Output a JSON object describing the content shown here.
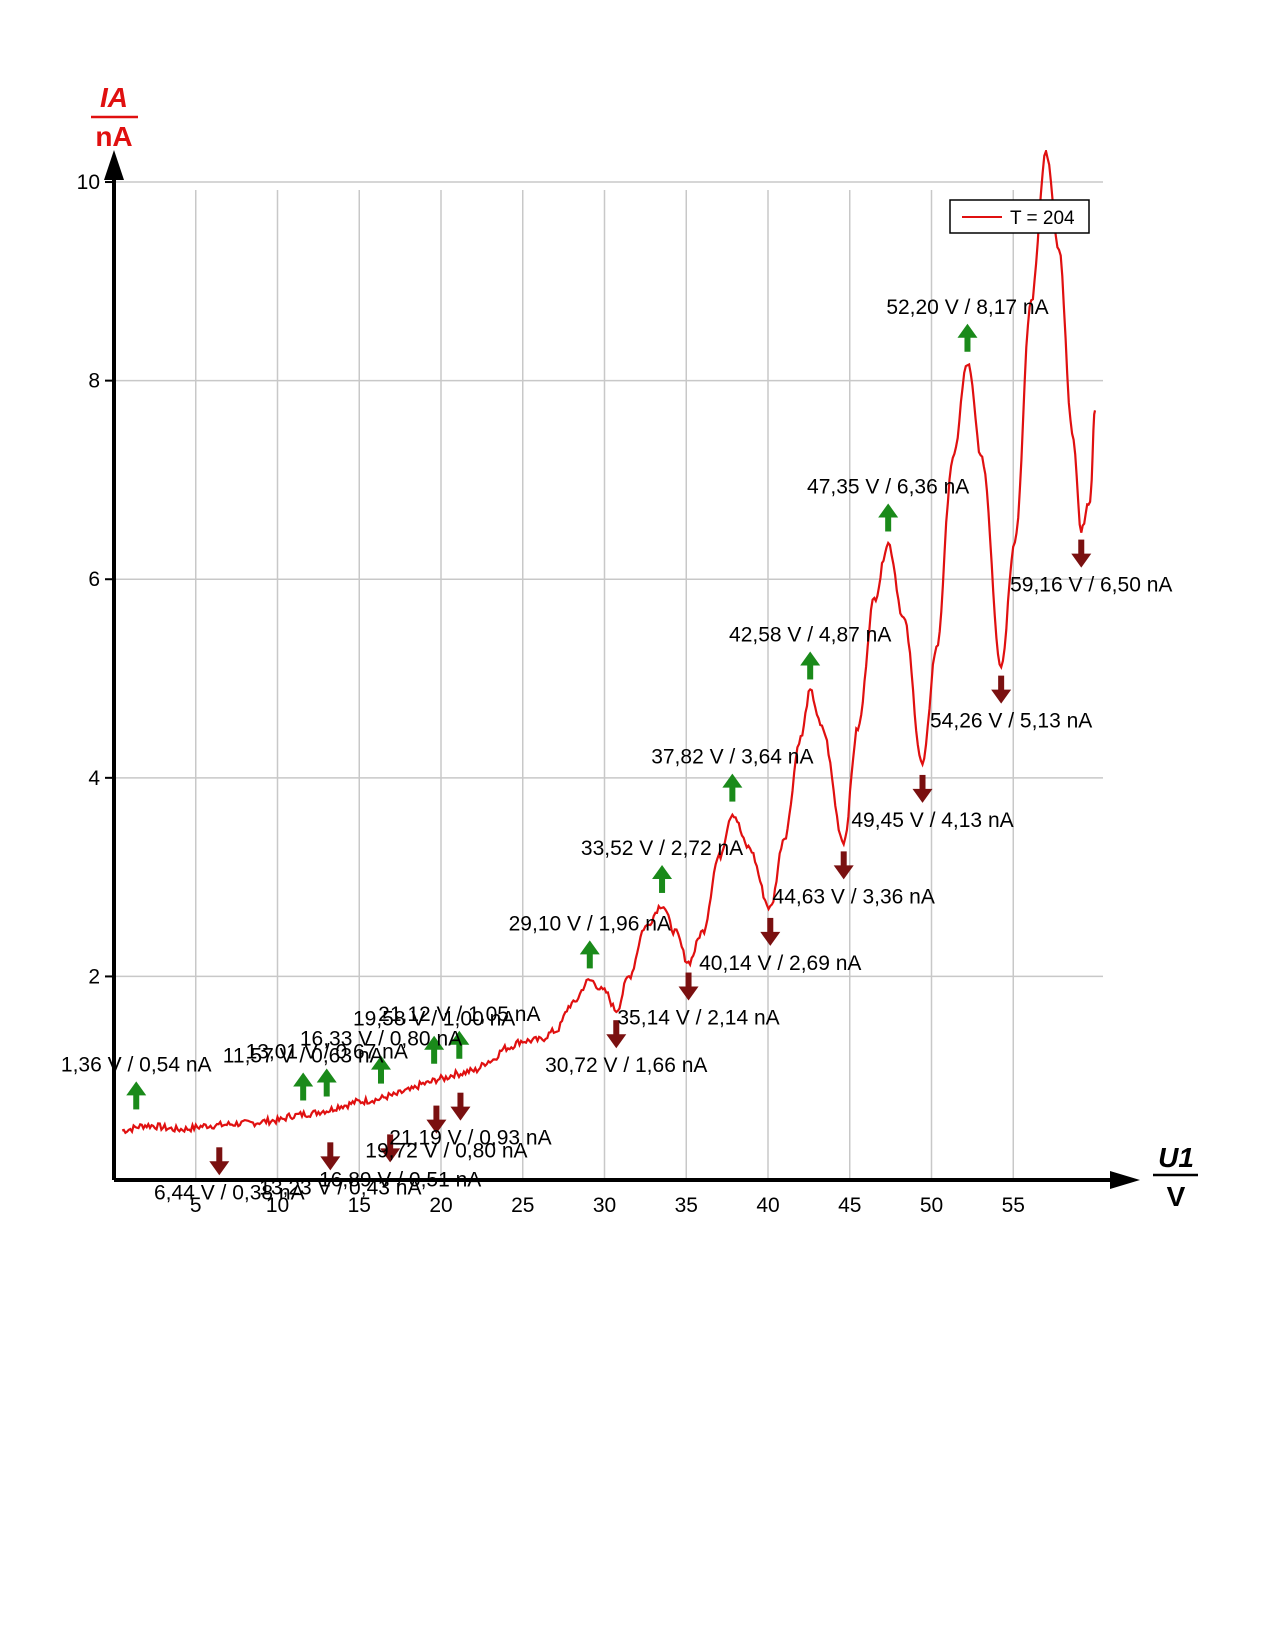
{
  "chart_data": {
    "type": "line",
    "title": "",
    "y_axis": {
      "symbol": "IA",
      "unit": "nA",
      "ticks": [
        "2",
        "4",
        "6",
        "8",
        "10"
      ],
      "range": [
        0,
        10
      ]
    },
    "x_axis": {
      "symbol": "U1",
      "unit": "V",
      "ticks": [
        "5",
        "10",
        "15",
        "20",
        "25",
        "30",
        "35",
        "40",
        "45",
        "50",
        "55"
      ],
      "range": [
        0,
        60
      ]
    },
    "grid": true,
    "legend": {
      "position": "top-right",
      "label": "T = 204"
    },
    "colors": {
      "curve": "#e01010",
      "max_arrow": "#1a8a1a",
      "min_arrow": "#7a1010",
      "grid": "#c8c8c8",
      "axis": "#000000"
    },
    "series": [
      {
        "name": "T = 204",
        "x": [
          0.5,
          2,
          4,
          6,
          8,
          10,
          11,
          12,
          13,
          14,
          15,
          16,
          17,
          18,
          19,
          20,
          21,
          22,
          23,
          24,
          25,
          26,
          27,
          28,
          29.1,
          30,
          30.72,
          31.5,
          32.5,
          33.52,
          34.3,
          35.14,
          36,
          37,
          37.82,
          38.8,
          40.14,
          41,
          42,
          42.58,
          43.3,
          44.63,
          45.5,
          46.5,
          47.35,
          48.3,
          49.45,
          50.3,
          51.3,
          52.2,
          53.1,
          54.26,
          55.1,
          56.1,
          57.0,
          57.8,
          58.6,
          59.16,
          59.7,
          60
        ],
        "values": [
          0.45,
          0.5,
          0.46,
          0.5,
          0.52,
          0.55,
          0.6,
          0.62,
          0.65,
          0.7,
          0.74,
          0.76,
          0.8,
          0.85,
          0.92,
          0.97,
          1.02,
          1.05,
          1.15,
          1.28,
          1.35,
          1.36,
          1.45,
          1.72,
          1.96,
          1.85,
          1.66,
          2.0,
          2.5,
          2.72,
          2.45,
          2.14,
          2.45,
          3.2,
          3.64,
          3.3,
          2.69,
          3.4,
          4.4,
          4.87,
          4.5,
          3.36,
          4.5,
          5.8,
          6.36,
          5.6,
          4.13,
          5.3,
          7.2,
          8.17,
          7.2,
          5.13,
          6.4,
          8.8,
          10.3,
          9.3,
          7.5,
          6.5,
          6.8,
          7.7
        ]
      }
    ],
    "maxima": [
      {
        "x": 1.36,
        "y": 0.54,
        "label": "1,36 V / 0,54 nA"
      },
      {
        "x": 11.57,
        "y": 0.63,
        "label": "11,57 V / 0,63 nA"
      },
      {
        "x": 13.01,
        "y": 0.67,
        "label": "13,01 V / 0,67 nA"
      },
      {
        "x": 16.33,
        "y": 0.8,
        "label": "16,33 V / 0,80 nA"
      },
      {
        "x": 19.58,
        "y": 1.0,
        "label": "19,58 V / 1,00 nA"
      },
      {
        "x": 21.12,
        "y": 1.05,
        "label": "21,12 V / 1,05 nA"
      },
      {
        "x": 29.1,
        "y": 1.96,
        "label": "29,10 V / 1,96 nA"
      },
      {
        "x": 33.52,
        "y": 2.72,
        "label": "33,52 V / 2,72 nA"
      },
      {
        "x": 37.82,
        "y": 3.64,
        "label": "37,82 V / 3,64 nA"
      },
      {
        "x": 42.58,
        "y": 4.87,
        "label": "42,58 V / 4,87 nA"
      },
      {
        "x": 47.35,
        "y": 6.36,
        "label": "47,35 V / 6,36 nA"
      },
      {
        "x": 52.2,
        "y": 8.17,
        "label": "52,20 V / 8,17 nA"
      }
    ],
    "minima": [
      {
        "x": 6.44,
        "y": 0.38,
        "label": "6,44 V / 0,38 nA"
      },
      {
        "x": 13.23,
        "y": 0.43,
        "label": "13,23 V / 0,43 nA"
      },
      {
        "x": 16.89,
        "y": 0.51,
        "label": "16,89 V / 0,51 nA"
      },
      {
        "x": 19.72,
        "y": 0.8,
        "label": "19,72 V / 0,80 nA"
      },
      {
        "x": 21.19,
        "y": 0.93,
        "label": "21,19 V / 0,93 nA"
      },
      {
        "x": 30.72,
        "y": 1.66,
        "label": "30,72 V / 1,66 nA"
      },
      {
        "x": 35.14,
        "y": 2.14,
        "label": "35,14 V / 2,14 nA"
      },
      {
        "x": 40.14,
        "y": 2.69,
        "label": "40,14 V / 2,69 nA"
      },
      {
        "x": 44.63,
        "y": 3.36,
        "label": "44,63 V / 3,36 nA"
      },
      {
        "x": 49.45,
        "y": 4.13,
        "label": "49,45 V / 4,13 nA"
      },
      {
        "x": 54.26,
        "y": 5.13,
        "label": "54,26 V / 5,13 nA"
      },
      {
        "x": 59.16,
        "y": 6.5,
        "label": "59,16 V / 6,50 nA"
      }
    ]
  }
}
